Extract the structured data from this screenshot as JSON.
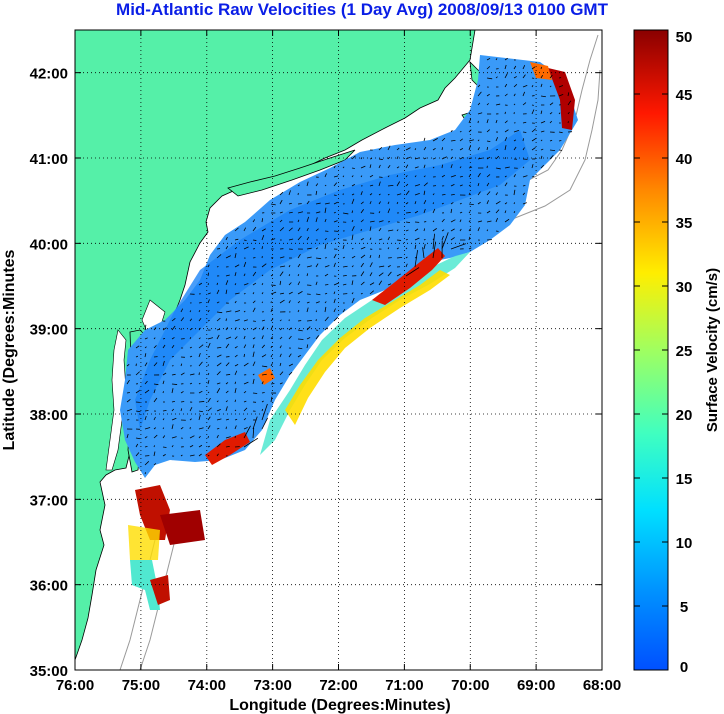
{
  "title": "Mid-Atlantic Raw Velocities (1 Day Avg) 2008/09/13 0100 GMT",
  "map": {
    "xlabel": "Longitude (Degrees:Minutes)",
    "ylabel": "Latitude (Degrees:Minutes",
    "x_ticks": [
      "76:00",
      "75:00",
      "74:00",
      "73:00",
      "72:00",
      "71:00",
      "70:00",
      "69:00",
      "68:00"
    ],
    "y_ticks": [
      "42:00",
      "41:00",
      "40:00",
      "39:00",
      "38:00",
      "37:00",
      "36:00",
      "35:00"
    ],
    "lon_range": [
      -76,
      -68
    ],
    "lat_range": [
      35,
      42.5
    ],
    "grid": "dotted",
    "colors": {
      "land": "#55f0a8",
      "coast": "#000000",
      "bathymetry": "#9a9a9a",
      "vectors": "#000000"
    }
  },
  "colorbar": {
    "label": "Surface Velocity (cm/s)",
    "ticks": [
      "50",
      "45",
      "40",
      "35",
      "30",
      "25",
      "20",
      "15",
      "10",
      "5",
      "0"
    ],
    "range": [
      0,
      50
    ],
    "colormap": "jet"
  }
}
